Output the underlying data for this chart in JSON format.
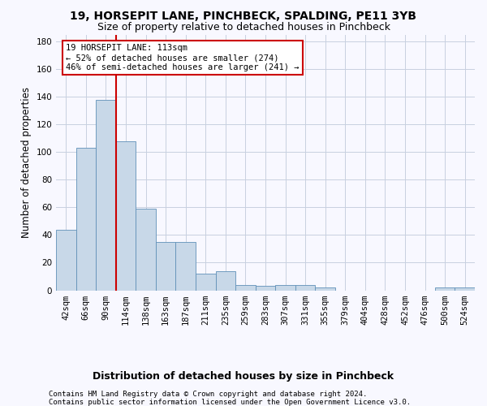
{
  "title1": "19, HORSEPIT LANE, PINCHBECK, SPALDING, PE11 3YB",
  "title2": "Size of property relative to detached houses in Pinchbeck",
  "xlabel": "Distribution of detached houses by size in Pinchbeck",
  "ylabel": "Number of detached properties",
  "categories": [
    "42sqm",
    "66sqm",
    "90sqm",
    "114sqm",
    "138sqm",
    "163sqm",
    "187sqm",
    "211sqm",
    "235sqm",
    "259sqm",
    "283sqm",
    "307sqm",
    "331sqm",
    "355sqm",
    "379sqm",
    "404sqm",
    "428sqm",
    "452sqm",
    "476sqm",
    "500sqm",
    "524sqm"
  ],
  "values": [
    44,
    103,
    138,
    108,
    59,
    35,
    35,
    12,
    14,
    4,
    3,
    4,
    4,
    2,
    0,
    0,
    0,
    0,
    0,
    2,
    2
  ],
  "bar_color": "#c8d8e8",
  "bar_edge_color": "#6090b8",
  "vline_color": "#cc0000",
  "vline_pos": 2.5,
  "annotation_text": "19 HORSEPIT LANE: 113sqm\n← 52% of detached houses are smaller (274)\n46% of semi-detached houses are larger (241) →",
  "annotation_box_color": "#ffffff",
  "annotation_box_edge_color": "#cc0000",
  "ylim": [
    0,
    185
  ],
  "yticks": [
    0,
    20,
    40,
    60,
    80,
    100,
    120,
    140,
    160,
    180
  ],
  "footer1": "Contains HM Land Registry data © Crown copyright and database right 2024.",
  "footer2": "Contains public sector information licensed under the Open Government Licence v3.0.",
  "bg_color": "#f8f8ff",
  "grid_color": "#c8d0e0",
  "title_fontsize": 10,
  "subtitle_fontsize": 9,
  "axis_label_fontsize": 8.5,
  "tick_fontsize": 7.5,
  "footer_fontsize": 6.5,
  "annot_fontsize": 7.5
}
